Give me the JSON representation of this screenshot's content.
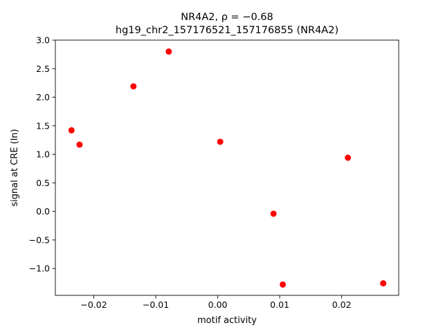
{
  "chart_data": {
    "type": "scatter",
    "title": "NR4A2, ρ = −0.68",
    "subtitle": "hg19_chr2_157176521_157176855 (NR4A2)",
    "xlabel": "motif activity",
    "ylabel": "signal at CRE (ln)",
    "xlim": [
      -0.0262,
      0.0292
    ],
    "ylim": [
      -1.47,
      3.0
    ],
    "xticks": [
      -0.02,
      -0.01,
      0.0,
      0.01,
      0.02
    ],
    "xtick_labels": [
      "−0.02",
      "−0.01",
      "0.00",
      "0.01",
      "0.02"
    ],
    "yticks": [
      -1.0,
      -0.5,
      0.0,
      0.5,
      1.0,
      1.5,
      2.0,
      2.5,
      3.0
    ],
    "ytick_labels": [
      "−1.0",
      "−0.5",
      "0.0",
      "0.5",
      "1.0",
      "1.5",
      "2.0",
      "2.5",
      "3.0"
    ],
    "grid": false,
    "series": [
      {
        "color": "#ff0000",
        "points": [
          {
            "x": -0.0236,
            "y": 1.42
          },
          {
            "x": -0.0223,
            "y": 1.17
          },
          {
            "x": -0.0136,
            "y": 2.19
          },
          {
            "x": -0.0079,
            "y": 2.8
          },
          {
            "x": 0.0004,
            "y": 1.22
          },
          {
            "x": 0.009,
            "y": -0.04
          },
          {
            "x": 0.0105,
            "y": -1.28
          },
          {
            "x": 0.021,
            "y": 0.94
          },
          {
            "x": 0.0267,
            "y": -1.26
          }
        ]
      }
    ]
  }
}
